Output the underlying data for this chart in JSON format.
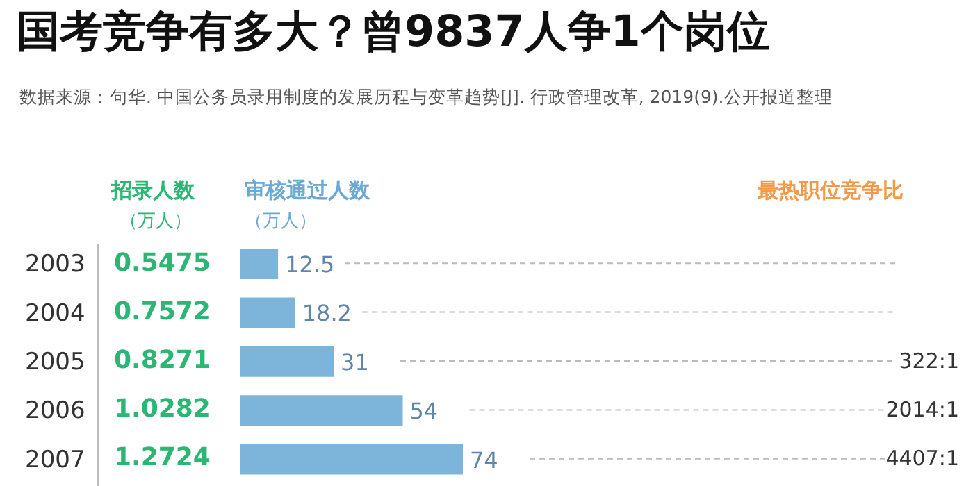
{
  "chart_data": {
    "type": "bar",
    "orientation": "horizontal",
    "title": "国考竞争有多大？曾9837人争1个岗位",
    "subtitle": "数据来源：句华. 中国公务员录用制度的发展历程与变革趋势[J]. 行政管理改革, 2019(9).公开报道整理",
    "categories": [
      "2003",
      "2004",
      "2005",
      "2006",
      "2007"
    ],
    "series": [
      {
        "color": "#7db4da",
        "values": [
          12.5,
          18.2,
          31,
          54,
          74
        ]
      }
    ],
    "data_labels": true,
    "annotations": [
      "招录人数",
      "（万人）",
      "审核通过人数",
      "（万人）",
      "最热职位竞争比",
      "0.5475",
      "0.7572",
      "0.8271",
      "1.0282",
      "1.2724",
      "322:1",
      "2014:1",
      "4407:1"
    ]
  }
}
